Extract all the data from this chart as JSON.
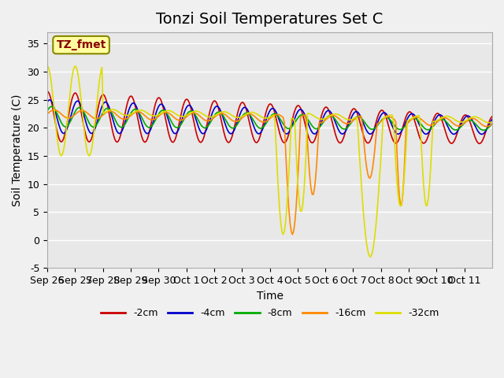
{
  "title": "Tonzi Soil Temperatures Set C",
  "xlabel": "Time",
  "ylabel": "Soil Temperature (C)",
  "annotation": "TZ_fmet",
  "ylim": [
    -5,
    37
  ],
  "xtick_labels": [
    "Sep 26",
    "Sep 27",
    "Sep 28",
    "Sep 29",
    "Sep 30",
    "Oct 1",
    "Oct 2",
    "Oct 3",
    "Oct 4",
    "Oct 5",
    "Oct 6",
    "Oct 7",
    "Oct 8",
    "Oct 9",
    "Oct 10",
    "Oct 11"
  ],
  "ytick_values": [
    -5,
    0,
    5,
    10,
    15,
    20,
    25,
    30,
    35
  ],
  "series": [
    {
      "label": "-2cm",
      "color": "#CC0000"
    },
    {
      "label": "-4cm",
      "color": "#0000CC"
    },
    {
      "label": "-8cm",
      "color": "#00AA00"
    },
    {
      "label": "-16cm",
      "color": "#FF8800"
    },
    {
      "label": "-32cm",
      "color": "#DDDD00"
    }
  ],
  "background_color": "#E8E8E8",
  "grid_color": "#FFFFFF",
  "title_fontsize": 14,
  "axis_fontsize": 10,
  "tick_fontsize": 9
}
